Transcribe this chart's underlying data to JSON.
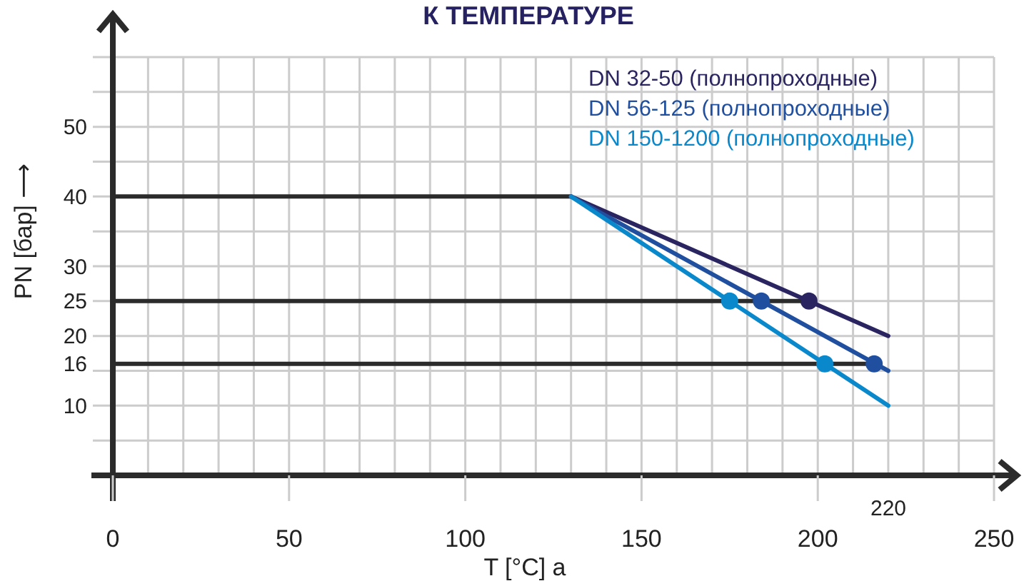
{
  "chart_data": {
    "type": "line",
    "title": "К ТЕМПЕРАТУРЕ",
    "xlabel": "T [°C] a",
    "ylabel": "PN [бар] ⟶",
    "xlim": [
      0,
      250
    ],
    "ylim": [
      0,
      60
    ],
    "xticks": [
      0,
      50,
      100,
      150,
      200,
      250
    ],
    "yticks": [
      10,
      16,
      20,
      25,
      30,
      40,
      50
    ],
    "grid": true,
    "legend": "top right",
    "line_style": "solid",
    "annotations": [
      "220"
    ],
    "series": [
      {
        "color": "#2b2b2b",
        "x": [
          0,
          130
        ],
        "values": [
          40,
          40
        ]
      },
      {
        "color": "#2b2b2b",
        "x": [
          0,
          197.5
        ],
        "values": [
          25,
          25
        ]
      },
      {
        "color": "#2b2b2b",
        "x": [
          0,
          216
        ],
        "values": [
          16,
          16
        ]
      },
      {
        "name": "DN 32-50 (полнопроходные)",
        "color": "#2a2560",
        "x": [
          130,
          220
        ],
        "values": [
          40,
          20
        ]
      },
      {
        "name": "DN 56-125 (полнопроходные)",
        "color": "#1f4f9e",
        "x": [
          130,
          220
        ],
        "values": [
          40,
          15
        ]
      },
      {
        "name": "DN 150-1200 (полнопроходные)",
        "color": "#0a88cc",
        "x": [
          130,
          220
        ],
        "values": [
          40,
          10
        ]
      },
      {
        "type": "scatter",
        "marker": "circle",
        "color": "#2a2560",
        "x": [
          197.5
        ],
        "values": [
          25
        ]
      },
      {
        "type": "scatter",
        "marker": "circle",
        "color": "#1f4f9e",
        "x": [
          184,
          216
        ],
        "values": [
          25,
          16
        ]
      },
      {
        "type": "scatter",
        "marker": "circle",
        "color": "#0a88cc",
        "x": [
          175,
          202
        ],
        "values": [
          25,
          16
        ]
      }
    ]
  }
}
